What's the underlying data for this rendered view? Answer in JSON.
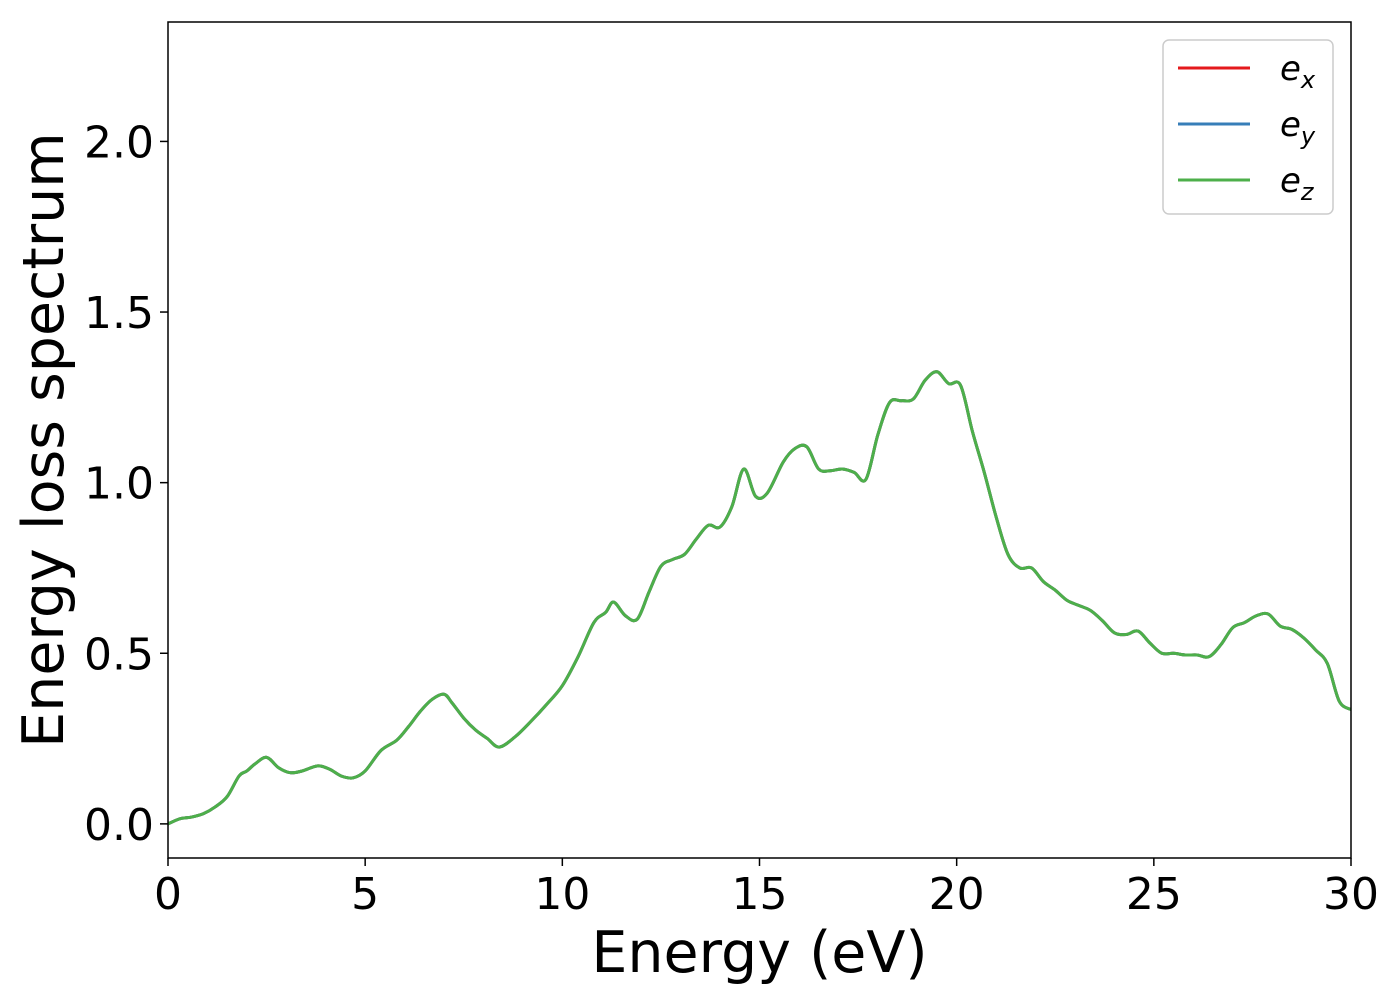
{
  "chart_data": {
    "type": "line",
    "title": "",
    "xlabel": "Energy (eV)",
    "ylabel": "Energy loss spectrum",
    "xlim": [
      0,
      30
    ],
    "ylim": [
      -0.1,
      2.35
    ],
    "xticks": [
      "0",
      "5",
      "10",
      "15",
      "20",
      "25",
      "30"
    ],
    "yticks": [
      "0.0",
      "0.5",
      "1.0",
      "1.5",
      "2.0"
    ],
    "grid": false,
    "legend_position": "top-right",
    "series": [
      {
        "name": "e_x",
        "label_base": "e",
        "label_sub": "x",
        "color": "#e41a1c"
      },
      {
        "name": "e_y",
        "label_base": "e",
        "label_sub": "y",
        "color": "#377eb8"
      },
      {
        "name": "e_z",
        "label_base": "e",
        "label_sub": "z",
        "color": "#4daf4a"
      }
    ],
    "x": [
      0,
      0.3,
      0.6,
      0.9,
      1.2,
      1.5,
      1.8,
      2.0,
      2.2,
      2.5,
      2.8,
      3.1,
      3.4,
      3.8,
      4.1,
      4.4,
      4.7,
      5.0,
      5.4,
      5.8,
      6.1,
      6.4,
      6.7,
      7.0,
      7.2,
      7.5,
      7.8,
      8.1,
      8.4,
      8.8,
      9.2,
      9.6,
      10.0,
      10.4,
      10.8,
      11.1,
      11.3,
      11.6,
      11.9,
      12.2,
      12.5,
      12.8,
      13.1,
      13.4,
      13.7,
      14.0,
      14.3,
      14.6,
      14.9,
      15.2,
      15.6,
      15.9,
      16.2,
      16.5,
      16.8,
      17.1,
      17.4,
      17.7,
      18.0,
      18.3,
      18.6,
      18.9,
      19.2,
      19.5,
      19.8,
      20.1,
      20.4,
      20.7,
      21.0,
      21.3,
      21.6,
      21.9,
      22.2,
      22.5,
      22.8,
      23.1,
      23.4,
      23.7,
      24.0,
      24.3,
      24.6,
      24.9,
      25.2,
      25.5,
      25.8,
      26.1,
      26.4,
      26.7,
      27.0,
      27.3,
      27.6,
      27.9,
      28.2,
      28.5,
      28.8,
      29.1,
      29.4,
      29.7,
      30.0
    ],
    "y": [
      0.0,
      0.015,
      0.02,
      0.03,
      0.05,
      0.08,
      0.14,
      0.155,
      0.175,
      0.195,
      0.165,
      0.15,
      0.155,
      0.17,
      0.16,
      0.14,
      0.135,
      0.155,
      0.215,
      0.245,
      0.285,
      0.33,
      0.365,
      0.38,
      0.355,
      0.31,
      0.275,
      0.25,
      0.225,
      0.255,
      0.3,
      0.35,
      0.405,
      0.49,
      0.59,
      0.62,
      0.65,
      0.61,
      0.6,
      0.68,
      0.755,
      0.775,
      0.79,
      0.835,
      0.875,
      0.87,
      0.93,
      1.04,
      0.96,
      0.97,
      1.06,
      1.1,
      1.105,
      1.04,
      1.035,
      1.04,
      1.03,
      1.01,
      1.14,
      1.235,
      1.24,
      1.245,
      1.3,
      1.325,
      1.29,
      1.285,
      1.15,
      1.03,
      0.9,
      0.79,
      0.75,
      0.75,
      0.71,
      0.685,
      0.655,
      0.64,
      0.625,
      0.595,
      0.56,
      0.555,
      0.565,
      0.53,
      0.5,
      0.5,
      0.495,
      0.495,
      0.49,
      0.525,
      0.575,
      0.59,
      0.61,
      0.615,
      0.58,
      0.57,
      0.545,
      0.51,
      0.47,
      0.36,
      0.335
    ]
  }
}
